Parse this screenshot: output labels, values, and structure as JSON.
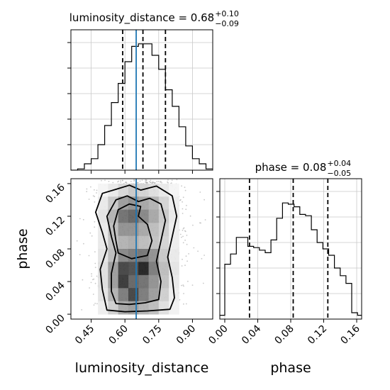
{
  "chart_data": {
    "type": "corner",
    "truth": {
      "luminosity_distance": 0.65,
      "phase": null
    },
    "panels": [
      {
        "id": "hist-luminosity-distance",
        "type": "histogram-step",
        "title": {
          "main": "luminosity_distance = 0.68",
          "sup": "+0.10",
          "sub": "−0.09"
        },
        "xlim": [
          0.36,
          0.99
        ],
        "ylim": [
          0,
          1
        ],
        "xticks": [
          0.45,
          0.6,
          0.75,
          0.9
        ],
        "bins": [
          0.36,
          0.39,
          0.42,
          0.45,
          0.48,
          0.51,
          0.54,
          0.57,
          0.6,
          0.63,
          0.66,
          0.69,
          0.72,
          0.75,
          0.78,
          0.81,
          0.84,
          0.87,
          0.9,
          0.93,
          0.96,
          0.99
        ],
        "values": [
          0.0,
          0.01,
          0.05,
          0.09,
          0.2,
          0.35,
          0.53,
          0.68,
          0.85,
          0.97,
          0.99,
          0.99,
          0.9,
          0.79,
          0.63,
          0.5,
          0.34,
          0.19,
          0.09,
          0.05,
          0.01
        ],
        "quantiles": [
          0.59,
          0.68,
          0.78
        ]
      },
      {
        "id": "hist-phase",
        "type": "histogram-step",
        "title": {
          "main": "phase = 0.08",
          "sup": "+0.04",
          "sub": "−0.05"
        },
        "xlim": [
          -0.006,
          0.166
        ],
        "ylim": [
          0,
          1
        ],
        "xticks": [
          0.0,
          0.04,
          0.08,
          0.12,
          0.16
        ],
        "xlabel": "phase",
        "bins": [
          -0.006,
          0.0,
          0.007,
          0.014,
          0.021,
          0.028,
          0.035,
          0.042,
          0.049,
          0.056,
          0.063,
          0.07,
          0.077,
          0.084,
          0.091,
          0.098,
          0.105,
          0.112,
          0.119,
          0.126,
          0.133,
          0.14,
          0.147,
          0.154,
          0.161,
          0.166
        ],
        "values": [
          0.03,
          0.43,
          0.51,
          0.64,
          0.64,
          0.57,
          0.56,
          0.54,
          0.52,
          0.62,
          0.79,
          0.91,
          0.9,
          0.88,
          0.82,
          0.81,
          0.7,
          0.6,
          0.55,
          0.5,
          0.4,
          0.34,
          0.28,
          0.05,
          0.03
        ],
        "quantiles": [
          0.03,
          0.083,
          0.125
        ]
      },
      {
        "id": "joint",
        "type": "hist2d-contour",
        "xlim": [
          0.36,
          0.99
        ],
        "ylim": [
          -0.006,
          0.166
        ],
        "xticks": [
          0.45,
          0.6,
          0.75,
          0.9
        ],
        "yticks": [
          0.0,
          0.04,
          0.08,
          0.12,
          0.16
        ],
        "xlabel": "luminosity_distance",
        "ylabel": "phase",
        "density": {
          "xrange": [
            0.48,
            0.84
          ],
          "yrange": [
            0.0,
            0.16
          ],
          "cells": [
            [
              0.05,
              0.1,
              0.18,
              0.25,
              0.2,
              0.15,
              0.1,
              0.05
            ],
            [
              0.1,
              0.25,
              0.45,
              0.5,
              0.4,
              0.35,
              0.2,
              0.08
            ],
            [
              0.12,
              0.35,
              0.65,
              0.7,
              0.55,
              0.4,
              0.25,
              0.1
            ],
            [
              0.1,
              0.3,
              0.5,
              0.5,
              0.4,
              0.3,
              0.22,
              0.08
            ],
            [
              0.1,
              0.28,
              0.35,
              0.38,
              0.3,
              0.28,
              0.2,
              0.08
            ],
            [
              0.12,
              0.3,
              0.55,
              0.6,
              0.62,
              0.5,
              0.25,
              0.1
            ],
            [
              0.15,
              0.45,
              0.85,
              0.8,
              1.0,
              0.6,
              0.3,
              0.12
            ],
            [
              0.15,
              0.45,
              0.9,
              0.7,
              0.65,
              0.5,
              0.28,
              0.1
            ],
            [
              0.12,
              0.35,
              0.6,
              0.85,
              0.6,
              0.45,
              0.22,
              0.08
            ],
            [
              0.08,
              0.22,
              0.4,
              0.45,
              0.35,
              0.3,
              0.15,
              0.06
            ]
          ]
        },
        "contours": [
          {
            "level": "outer",
            "points": [
              [
                0.52,
                0.005
              ],
              [
                0.6,
                0.003
              ],
              [
                0.7,
                0.004
              ],
              [
                0.8,
                0.006
              ],
              [
                0.82,
                0.02
              ],
              [
                0.81,
                0.045
              ],
              [
                0.79,
                0.07
              ],
              [
                0.81,
                0.095
              ],
              [
                0.83,
                0.12
              ],
              [
                0.81,
                0.145
              ],
              [
                0.74,
                0.157
              ],
              [
                0.67,
                0.152
              ],
              [
                0.62,
                0.158
              ],
              [
                0.56,
                0.153
              ],
              [
                0.5,
                0.148
              ],
              [
                0.47,
                0.125
              ],
              [
                0.5,
                0.1
              ],
              [
                0.52,
                0.08
              ],
              [
                0.49,
                0.055
              ],
              [
                0.5,
                0.03
              ]
            ]
          },
          {
            "level": "middle",
            "points": [
              [
                0.56,
                0.013
              ],
              [
                0.62,
                0.012
              ],
              [
                0.69,
                0.014
              ],
              [
                0.75,
                0.018
              ],
              [
                0.76,
                0.04
              ],
              [
                0.74,
                0.065
              ],
              [
                0.76,
                0.09
              ],
              [
                0.78,
                0.115
              ],
              [
                0.76,
                0.135
              ],
              [
                0.71,
                0.142
              ],
              [
                0.66,
                0.138
              ],
              [
                0.61,
                0.145
              ],
              [
                0.56,
                0.14
              ],
              [
                0.52,
                0.12
              ],
              [
                0.54,
                0.095
              ],
              [
                0.56,
                0.075
              ],
              [
                0.54,
                0.05
              ],
              [
                0.54,
                0.028
              ]
            ]
          },
          {
            "level": "inner",
            "points": [
              [
                0.57,
                0.075
              ],
              [
                0.63,
                0.068
              ],
              [
                0.7,
                0.072
              ],
              [
                0.72,
                0.09
              ],
              [
                0.7,
                0.11
              ],
              [
                0.66,
                0.12
              ],
              [
                0.67,
                0.132
              ],
              [
                0.62,
                0.135
              ],
              [
                0.57,
                0.128
              ],
              [
                0.55,
                0.108
              ],
              [
                0.56,
                0.09
              ]
            ]
          }
        ]
      }
    ]
  }
}
